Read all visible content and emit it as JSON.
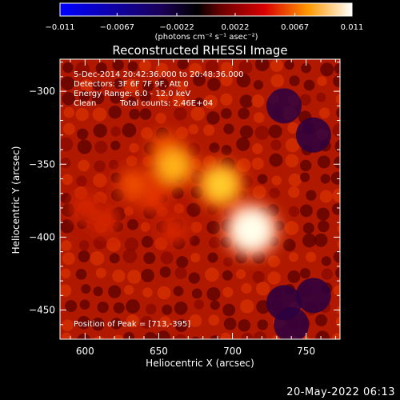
{
  "chart_data": {
    "type": "heatmap",
    "title": "Reconstructed RHESSI Image",
    "xlabel": "Heliocentric X (arcsec)",
    "ylabel": "Heliocentric Y (arcsec)",
    "xlim": [
      583,
      773
    ],
    "ylim": [
      -470,
      -278
    ],
    "x_ticks": [
      600,
      650,
      700,
      750
    ],
    "y_ticks": [
      -300,
      -350,
      -400,
      -450
    ],
    "colorbar": {
      "min": -0.011,
      "max": 0.011,
      "colormap": "rainbow",
      "ticks": [
        -0.011,
        -0.0067,
        -0.0022,
        0.0022,
        0.0067,
        0.011
      ],
      "tick_labels": [
        "−0.011",
        "−0.0067",
        "−0.0022",
        "0.0022",
        "0.0067",
        "0.011"
      ],
      "units": "(photons cm⁻² s⁻¹ asec⁻²)"
    },
    "annotations": {
      "time_range": "5-Dec-2014 20:42:36.000 to 20:48:36.000",
      "detectors": "Detectors: 3F 6F 7F 9F, Att 0",
      "energy": "Energy Range: 6.0 - 12.0 keV",
      "method": "Clean",
      "counts": "Total counts: 2.46E+04",
      "peak": "Position of Peak = [713,-395]"
    },
    "peak": {
      "x": 713,
      "y": -395
    },
    "sources": [
      {
        "x": 713,
        "y": -395,
        "value": 0.011
      },
      {
        "x": 692,
        "y": -364,
        "value": 0.0085
      },
      {
        "x": 660,
        "y": -351,
        "value": 0.0078
      },
      {
        "x": 655,
        "y": -340,
        "value": 0.0055
      },
      {
        "x": 633,
        "y": -364,
        "value": 0.005
      },
      {
        "x": 645,
        "y": -372,
        "value": 0.0045
      },
      {
        "x": 613,
        "y": -388,
        "value": 0.0035
      },
      {
        "x": 600,
        "y": -380,
        "value": 0.0035
      },
      {
        "x": 660,
        "y": -395,
        "value": 0.0035
      }
    ],
    "background_level": 0.0012,
    "grid": false
  },
  "date_stamp": "20-May-2022 06:13"
}
